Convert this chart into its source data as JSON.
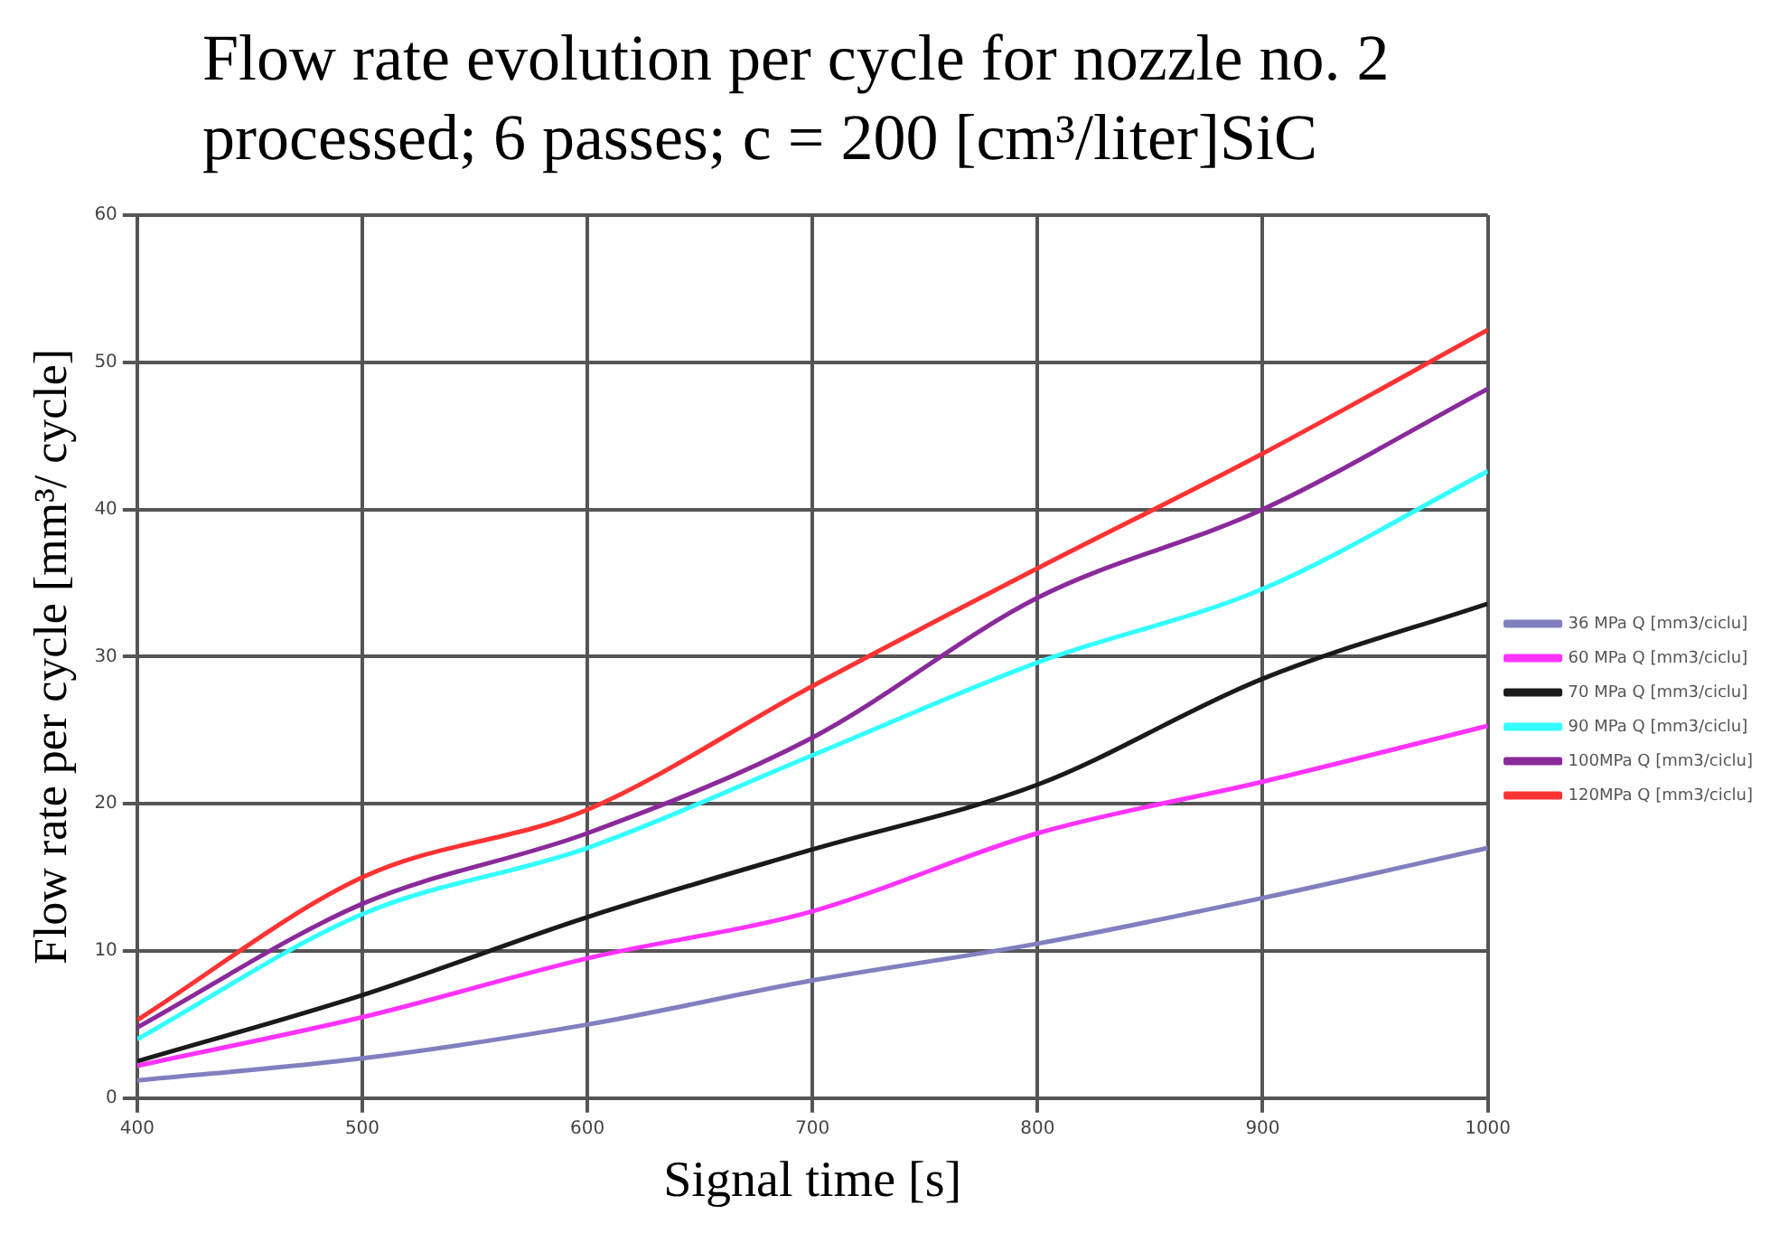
{
  "chart_data": {
    "type": "line",
    "title": "Flow rate evolution per cycle for nozzle no. 2\nprocessed; 6 passes; c = 200 [cm³/liter]SiC",
    "xlabel": "Signal time [s]",
    "ylabel": "Flow rate per cycle [mm³/ cycle]",
    "x": [
      400,
      500,
      600,
      700,
      800,
      900,
      1000
    ],
    "series": [
      {
        "name": "36 MPa Q [mm3/ciclu]",
        "color": "#8080c0",
        "values": [
          1.2,
          2.7,
          5,
          8,
          10.5,
          13.6,
          17
        ]
      },
      {
        "name": "60 MPa Q [mm3/ciclu]",
        "color": "#ff33ff",
        "values": [
          2.2,
          5.5,
          9.5,
          12.7,
          18,
          21.5,
          25.3
        ]
      },
      {
        "name": "70 MPa Q [mm3/ciclu]",
        "color": "#1a1a1a",
        "values": [
          2.5,
          7,
          12.3,
          16.9,
          21.3,
          28.5,
          33.6
        ]
      },
      {
        "name": "90 MPa Q [mm3/ciclu]",
        "color": "#33ffff",
        "values": [
          4,
          12.5,
          17,
          23.3,
          29.6,
          34.6,
          42.6
        ]
      },
      {
        "name": "100MPa Q [mm3/ciclu]",
        "color": "#8a2a9a",
        "values": [
          4.8,
          13.2,
          18,
          24.5,
          34,
          40,
          48.2
        ]
      },
      {
        "name": "120MPa Q [mm3/ciclu]",
        "color": "#ff3333",
        "values": [
          5.3,
          15,
          19.6,
          28,
          36,
          43.8,
          52.2
        ]
      }
    ],
    "xlim": [
      400,
      1000
    ],
    "xticks": [
      400,
      500,
      600,
      700,
      800,
      900,
      1000
    ],
    "ylim": [
      0,
      60
    ],
    "yticks": [
      0,
      10,
      20,
      30,
      40,
      50,
      60
    ],
    "grid": true,
    "legend": "right",
    "marker": "none",
    "line_style": "solid"
  }
}
